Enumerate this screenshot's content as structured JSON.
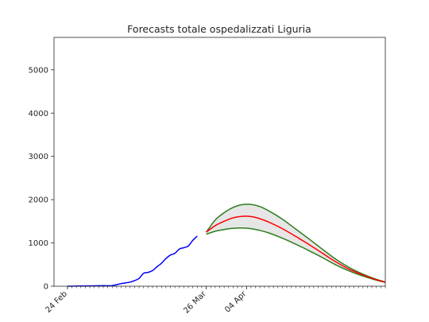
{
  "chart_data": {
    "type": "line",
    "title": "Forecasts totale ospedalizzati Liguria",
    "xlabel": "",
    "ylabel": "",
    "x_axis": {
      "kind": "date",
      "range": [
        "2020-02-21",
        "2020-05-05"
      ],
      "tick_labels": [
        {
          "date": "2020-02-24",
          "label": "24 Feb"
        },
        {
          "date": "2020-03-26",
          "label": "26 Mar"
        },
        {
          "date": "2020-04-04",
          "label": "04 Apr"
        }
      ],
      "minor_ticks": "daily"
    },
    "y_axis": {
      "range": [
        0,
        5750
      ],
      "ticks": [
        0,
        1000,
        2000,
        3000,
        4000,
        5000
      ]
    },
    "grid": false,
    "legend": "none",
    "series": [
      {
        "role": "observed",
        "color": "#0000ff",
        "points": [
          [
            "2020-02-24",
            0
          ],
          [
            "2020-02-26",
            5
          ],
          [
            "2020-02-28",
            8
          ],
          [
            "2020-03-01",
            10
          ],
          [
            "2020-03-03",
            12
          ],
          [
            "2020-03-05",
            15
          ],
          [
            "2020-03-07",
            60
          ],
          [
            "2020-03-09",
            95
          ],
          [
            "2020-03-10",
            130
          ],
          [
            "2020-03-11",
            180
          ],
          [
            "2020-03-12",
            300
          ],
          [
            "2020-03-13",
            320
          ],
          [
            "2020-03-14",
            360
          ],
          [
            "2020-03-15",
            450
          ],
          [
            "2020-03-16",
            530
          ],
          [
            "2020-03-17",
            640
          ],
          [
            "2020-03-18",
            720
          ],
          [
            "2020-03-19",
            760
          ],
          [
            "2020-03-20",
            860
          ],
          [
            "2020-03-21",
            890
          ],
          [
            "2020-03-22",
            930
          ],
          [
            "2020-03-23",
            1060
          ],
          [
            "2020-03-24",
            1160
          ]
        ]
      },
      {
        "role": "forecast",
        "color": "#ff0000",
        "points": [
          [
            "2020-03-26",
            1250
          ],
          [
            "2020-03-28",
            1400
          ],
          [
            "2020-03-30",
            1500
          ],
          [
            "2020-04-01",
            1580
          ],
          [
            "2020-04-03",
            1615
          ],
          [
            "2020-04-05",
            1610
          ],
          [
            "2020-04-07",
            1560
          ],
          [
            "2020-04-09",
            1480
          ],
          [
            "2020-04-12",
            1330
          ],
          [
            "2020-04-15",
            1150
          ],
          [
            "2020-04-18",
            960
          ],
          [
            "2020-04-21",
            760
          ],
          [
            "2020-04-24",
            560
          ],
          [
            "2020-04-27",
            390
          ],
          [
            "2020-04-30",
            260
          ],
          [
            "2020-05-03",
            150
          ],
          [
            "2020-05-05",
            95
          ]
        ]
      },
      {
        "role": "upper_bound",
        "color": "#2e7d1e",
        "points": [
          [
            "2020-03-26",
            1250
          ],
          [
            "2020-03-28",
            1530
          ],
          [
            "2020-03-30",
            1700
          ],
          [
            "2020-04-01",
            1820
          ],
          [
            "2020-04-03",
            1885
          ],
          [
            "2020-04-05",
            1890
          ],
          [
            "2020-04-07",
            1840
          ],
          [
            "2020-04-09",
            1740
          ],
          [
            "2020-04-12",
            1550
          ],
          [
            "2020-04-15",
            1320
          ],
          [
            "2020-04-18",
            1090
          ],
          [
            "2020-04-21",
            850
          ],
          [
            "2020-04-24",
            620
          ],
          [
            "2020-04-27",
            430
          ],
          [
            "2020-04-30",
            280
          ],
          [
            "2020-05-03",
            160
          ],
          [
            "2020-05-05",
            100
          ]
        ]
      },
      {
        "role": "lower_bound",
        "color": "#2e7d1e",
        "points": [
          [
            "2020-03-26",
            1200
          ],
          [
            "2020-03-28",
            1270
          ],
          [
            "2020-03-30",
            1310
          ],
          [
            "2020-04-01",
            1340
          ],
          [
            "2020-04-03",
            1345
          ],
          [
            "2020-04-05",
            1330
          ],
          [
            "2020-04-07",
            1290
          ],
          [
            "2020-04-09",
            1230
          ],
          [
            "2020-04-12",
            1110
          ],
          [
            "2020-04-15",
            970
          ],
          [
            "2020-04-18",
            820
          ],
          [
            "2020-04-21",
            660
          ],
          [
            "2020-04-24",
            490
          ],
          [
            "2020-04-27",
            350
          ],
          [
            "2020-04-30",
            235
          ],
          [
            "2020-05-03",
            140
          ],
          [
            "2020-05-05",
            90
          ]
        ]
      }
    ],
    "band": {
      "between": [
        "upper_bound",
        "lower_bound"
      ],
      "fill": "#e6e6e6"
    }
  }
}
